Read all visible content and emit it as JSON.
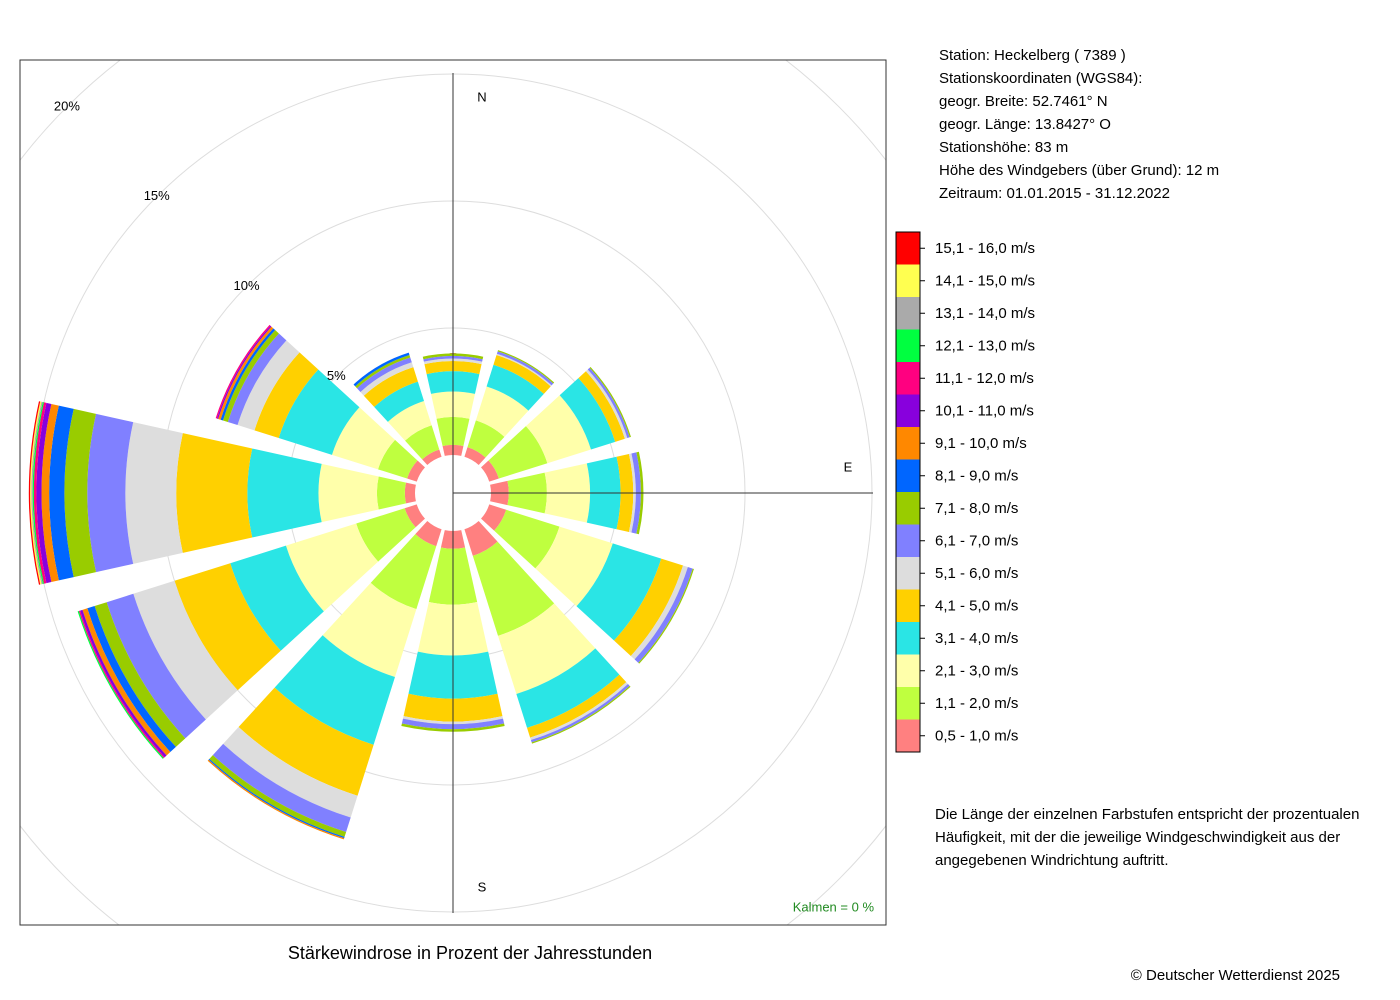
{
  "chart_data": {
    "type": "windrose",
    "title": "Stärkewindrose in Prozent der Jahresstunden",
    "categories": [
      "N",
      null,
      null,
      "E",
      null,
      null,
      "S",
      null,
      null,
      null,
      null,
      null
    ],
    "rlim": [
      0,
      20
    ],
    "rticks": [
      {
        "value": 5,
        "label": "5%"
      },
      {
        "value": 10,
        "label": "10%"
      },
      {
        "value": 15,
        "label": "15%"
      },
      {
        "value": 20,
        "label": "20%"
      }
    ],
    "grid": true,
    "series": [
      {
        "name": "0,5 - 1,0 m/s",
        "color": "#ff8080",
        "values": [
          0.4,
          0.4,
          0.4,
          0.7,
          0.7,
          1.1,
          0.7,
          0.7,
          0.5,
          0.4,
          0.4,
          0.3
        ]
      },
      {
        "name": "1,1 - 2,0 m/s",
        "color": "#bfff3f",
        "values": [
          1.1,
          1.1,
          2.0,
          1.5,
          2.2,
          3.3,
          2.2,
          2.6,
          2.0,
          1.1,
          1.2,
          1.0
        ]
      },
      {
        "name": "2,1 - 3,0 m/s",
        "color": "#ffffaa",
        "values": [
          1.0,
          1.4,
          1.8,
          1.7,
          2.2,
          2.4,
          2.0,
          2.8,
          2.9,
          2.3,
          1.9,
          1.0
        ]
      },
      {
        "name": "3,1 - 4,0 m/s",
        "color": "#2ae5e5",
        "values": [
          0.8,
          0.9,
          1.0,
          1.2,
          2.0,
          1.4,
          1.7,
          2.8,
          2.3,
          2.8,
          2.2,
          0.8
        ]
      },
      {
        "name": "4,1 - 5,0 m/s",
        "color": "#ffd000",
        "values": [
          0.4,
          0.4,
          0.4,
          0.5,
          0.9,
          0.4,
          0.9,
          2.1,
          2.3,
          2.8,
          1.0,
          0.6
        ]
      },
      {
        "name": "5,1 - 6,0 m/s",
        "color": "#dddddd",
        "values": [
          0.1,
          0.05,
          0.1,
          0.1,
          0.2,
          0.1,
          0.1,
          0.9,
          1.7,
          2.0,
          0.7,
          0.2
        ]
      },
      {
        "name": "6,1 - 7,0 m/s",
        "color": "#8080ff",
        "values": [
          0.1,
          0.1,
          0.1,
          0.2,
          0.2,
          0.1,
          0.2,
          0.6,
          1.1,
          1.5,
          0.4,
          0.2
        ]
      },
      {
        "name": "7,1 - 8,0 m/s",
        "color": "#99cc00",
        "values": [
          0.1,
          0.05,
          0.05,
          0.1,
          0.05,
          0.05,
          0.1,
          0.2,
          0.5,
          0.9,
          0.2,
          0.1
        ]
      },
      {
        "name": "8,1 - 9,0 m/s",
        "color": "#0066ff",
        "values": [
          0,
          0,
          0,
          0,
          0,
          0,
          0,
          0.05,
          0.3,
          0.6,
          0.1,
          0.1
        ]
      },
      {
        "name": "9,1 - 10,0 m/s",
        "color": "#ff8800",
        "values": [
          0,
          0,
          0,
          0,
          0,
          0,
          0,
          0.05,
          0.2,
          0.3,
          0.1,
          0
        ]
      },
      {
        "name": "10,1 - 11,0 m/s",
        "color": "#8800dd",
        "values": [
          0,
          0,
          0,
          0,
          0,
          0,
          0,
          0,
          0.1,
          0.2,
          0.05,
          0
        ]
      },
      {
        "name": "11,1 - 12,0 m/s",
        "color": "#ff0080",
        "values": [
          0,
          0,
          0,
          0,
          0,
          0,
          0,
          0,
          0.05,
          0.1,
          0.05,
          0
        ]
      },
      {
        "name": "12,1 - 13,0 m/s",
        "color": "#00ff40",
        "values": [
          0,
          0,
          0,
          0,
          0,
          0,
          0,
          0,
          0.05,
          0.05,
          0,
          0
        ]
      },
      {
        "name": "13,1 - 14,0 m/s",
        "color": "#aaaaaa",
        "values": [
          0,
          0,
          0,
          0,
          0,
          0,
          0,
          0,
          0,
          0.05,
          0,
          0
        ]
      },
      {
        "name": "14,1 - 15,0 m/s",
        "color": "#ffff50",
        "values": [
          0,
          0,
          0,
          0,
          0,
          0,
          0,
          0,
          0,
          0.05,
          0,
          0
        ]
      },
      {
        "name": "15,1 - 16,0 m/s",
        "color": "#ff0000",
        "values": [
          0,
          0,
          0,
          0,
          0,
          0,
          0,
          0,
          0,
          0.05,
          0,
          0
        ]
      }
    ],
    "calm_text": "Kalmen  =  0 %"
  },
  "info": [
    "Station:  Heckelberg  ( 7389 )",
    "Stationskoordinaten (WGS84):",
    "geogr. Breite: 52.7461° N",
    "geogr. Länge: 13.8427° O",
    "Stationshöhe: 83 m",
    "Höhe des Windgebers (über Grund): 12 m",
    "Zeitraum: 01.01.2015 - 31.12.2022"
  ],
  "note": [
    "Die Länge der einzelnen Farbstufen entspricht der prozentualen",
    "Häufigkeit, mit der die jeweilige Windgeschwindigkeit aus der",
    "angegebenen Windrichtung auftritt."
  ],
  "copyright": "© Deutscher Wetterdienst  2025"
}
